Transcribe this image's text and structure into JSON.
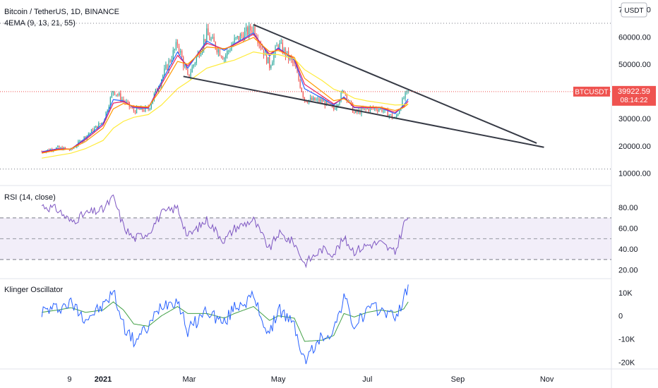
{
  "header": {
    "symbol_title": "Bitcoin / TetherUS, 1D, BINANCE",
    "ema_label": "4EMA (9, 13, 21, 55)",
    "currency_button": "USDT"
  },
  "price_badge": {
    "symbol": "BTCUSDT",
    "price": "39922.59",
    "countdown": "08:14:22"
  },
  "colors": {
    "up": "#26a69a",
    "down": "#ef5350",
    "ema9": "#2962ff",
    "ema13": "#e91e63",
    "ema21": "#ff9800",
    "ema55": "#ffeb3b",
    "trendline": "#363a45",
    "rsi": "#7e57c2",
    "klinger": "#2962ff",
    "klinger_signal": "#43a047",
    "price_line": "#ef5350"
  },
  "chart_data": [
    {
      "type": "line",
      "name": "price",
      "title": "Bitcoin / TetherUS, 1D, BINANCE",
      "x": [
        "2020-11-20",
        "2020-12-01",
        "2020-12-10",
        "2020-12-20",
        "2021-01-01",
        "2021-01-08",
        "2021-01-15",
        "2021-01-22",
        "2021-02-01",
        "2021-02-10",
        "2021-02-21",
        "2021-02-28",
        "2021-03-13",
        "2021-03-25",
        "2021-04-01",
        "2021-04-14",
        "2021-04-25",
        "2021-05-01",
        "2021-05-12",
        "2021-05-19",
        "2021-05-31",
        "2021-06-08",
        "2021-06-15",
        "2021-06-22",
        "2021-07-01",
        "2021-07-10",
        "2021-07-20",
        "2021-07-26",
        "2021-07-29"
      ],
      "close": [
        18000,
        19300,
        18500,
        23500,
        29000,
        40500,
        36500,
        33000,
        33500,
        44800,
        57500,
        45000,
        61000,
        52500,
        58500,
        63500,
        49500,
        57500,
        49500,
        37000,
        36500,
        33500,
        40500,
        32000,
        33500,
        33800,
        29800,
        37500,
        39922.59
      ],
      "series": [
        {
          "name": "EMA 9",
          "values": [
            17800,
            19000,
            18800,
            22800,
            28200,
            37000,
            36500,
            34000,
            33800,
            43500,
            54500,
            48500,
            58500,
            55000,
            57500,
            61500,
            53000,
            56000,
            51500,
            41000,
            37500,
            35000,
            38000,
            34000,
            34000,
            34000,
            31800,
            35000,
            37200
          ]
        },
        {
          "name": "EMA 13",
          "values": [
            17600,
            18800,
            18900,
            22300,
            27600,
            35700,
            36300,
            34300,
            34000,
            42600,
            53200,
            49300,
            57700,
            55500,
            57200,
            61000,
            53700,
            55600,
            52000,
            42600,
            38300,
            35400,
            37600,
            34300,
            34100,
            34100,
            32300,
            34500,
            36400
          ]
        },
        {
          "name": "EMA 21",
          "values": [
            17300,
            18500,
            18900,
            21600,
            26500,
            33600,
            35600,
            34600,
            34300,
            41000,
            51000,
            50000,
            56300,
            55700,
            56700,
            59800,
            54600,
            55000,
            52500,
            44800,
            39900,
            36600,
            37300,
            34900,
            34400,
            34200,
            33000,
            34100,
            35400
          ]
        },
        {
          "name": "EMA 55",
          "values": [
            15500,
            16500,
            17300,
            19000,
            22000,
            26500,
            29000,
            30500,
            31500,
            35000,
            41000,
            43500,
            48500,
            50500,
            51500,
            54500,
            53500,
            53500,
            52000,
            48000,
            44000,
            40800,
            39500,
            37500,
            36500,
            35800,
            35000,
            35100,
            35400
          ]
        }
      ],
      "trendlines": [
        {
          "x": [
            "2021-04-14",
            "2021-10-25"
          ],
          "y": [
            64500,
            21000
          ]
        },
        {
          "x": [
            "2021-02-25",
            "2021-10-30"
          ],
          "y": [
            45500,
            19500
          ]
        }
      ],
      "yticks": [
        "10000.00",
        "20000.00",
        "30000.00",
        "40000.00",
        "50000.00",
        "60000.00",
        "70000.00"
      ],
      "ylim": [
        7000,
        72000
      ]
    },
    {
      "type": "line",
      "title": "RSI (14, close)",
      "x": [
        "2020-11-20",
        "2020-12-01",
        "2020-12-10",
        "2020-12-20",
        "2021-01-01",
        "2021-01-08",
        "2021-01-15",
        "2021-01-22",
        "2021-02-01",
        "2021-02-10",
        "2021-02-21",
        "2021-02-28",
        "2021-03-13",
        "2021-03-25",
        "2021-04-01",
        "2021-04-14",
        "2021-04-25",
        "2021-05-01",
        "2021-05-12",
        "2021-05-19",
        "2021-05-31",
        "2021-06-08",
        "2021-06-15",
        "2021-06-22",
        "2021-07-01",
        "2021-07-10",
        "2021-07-20",
        "2021-07-26",
        "2021-07-29"
      ],
      "values": [
        82,
        78,
        66,
        74,
        78,
        90,
        62,
        50,
        56,
        74,
        80,
        52,
        68,
        48,
        60,
        68,
        40,
        55,
        46,
        26,
        40,
        36,
        50,
        38,
        44,
        46,
        36,
        64,
        71
      ],
      "yticks": [
        "20.00",
        "40.00",
        "60.00",
        "80.00"
      ],
      "bands": [
        70,
        50,
        30
      ],
      "ylim": [
        15,
        95
      ]
    },
    {
      "type": "line",
      "title": "Klinger Oscillator",
      "x": [
        "2020-11-20",
        "2020-12-01",
        "2020-12-10",
        "2020-12-20",
        "2021-01-01",
        "2021-01-08",
        "2021-01-15",
        "2021-01-22",
        "2021-02-01",
        "2021-02-10",
        "2021-02-21",
        "2021-02-28",
        "2021-03-13",
        "2021-03-25",
        "2021-04-01",
        "2021-04-14",
        "2021-04-25",
        "2021-05-01",
        "2021-05-12",
        "2021-05-19",
        "2021-05-31",
        "2021-06-08",
        "2021-06-15",
        "2021-06-22",
        "2021-07-01",
        "2021-07-10",
        "2021-07-20",
        "2021-07-26",
        "2021-07-29"
      ],
      "series": [
        {
          "name": "Klinger",
          "values": [
            2000,
            3500,
            5500,
            -1000,
            4000,
            10500,
            -4000,
            -11000,
            -5000,
            5000,
            7000,
            -6500,
            2500,
            -3500,
            4000,
            8000,
            -9000,
            3500,
            -4500,
            -19500,
            -9000,
            -6500,
            8500,
            -5000,
            2500,
            3000,
            -500,
            7000,
            12500
          ]
        },
        {
          "name": "Signal",
          "values": [
            1500,
            2500,
            3500,
            1500,
            2500,
            6000,
            2500,
            -3500,
            -4500,
            0,
            4000,
            1000,
            1000,
            -1000,
            1000,
            4000,
            -2000,
            0,
            -1000,
            -11000,
            -10500,
            -8500,
            1000,
            -500,
            1500,
            2500,
            1500,
            3000,
            6000
          ]
        }
      ],
      "yticks": [
        "-20K",
        "-10K",
        "0",
        "10K"
      ],
      "ylim": [
        -22000,
        14500
      ]
    }
  ],
  "x_axis": {
    "ticks": [
      {
        "label": "9",
        "date": "2020-12-09"
      },
      {
        "label": "2021",
        "date": "2021-01-01"
      },
      {
        "label": "Mar",
        "date": "2021-03-01"
      },
      {
        "label": "May",
        "date": "2021-05-01"
      },
      {
        "label": "Jul",
        "date": "2021-07-01"
      },
      {
        "label": "Sep",
        "date": "2021-09-01"
      },
      {
        "label": "Nov",
        "date": "2021-11-01"
      }
    ]
  }
}
